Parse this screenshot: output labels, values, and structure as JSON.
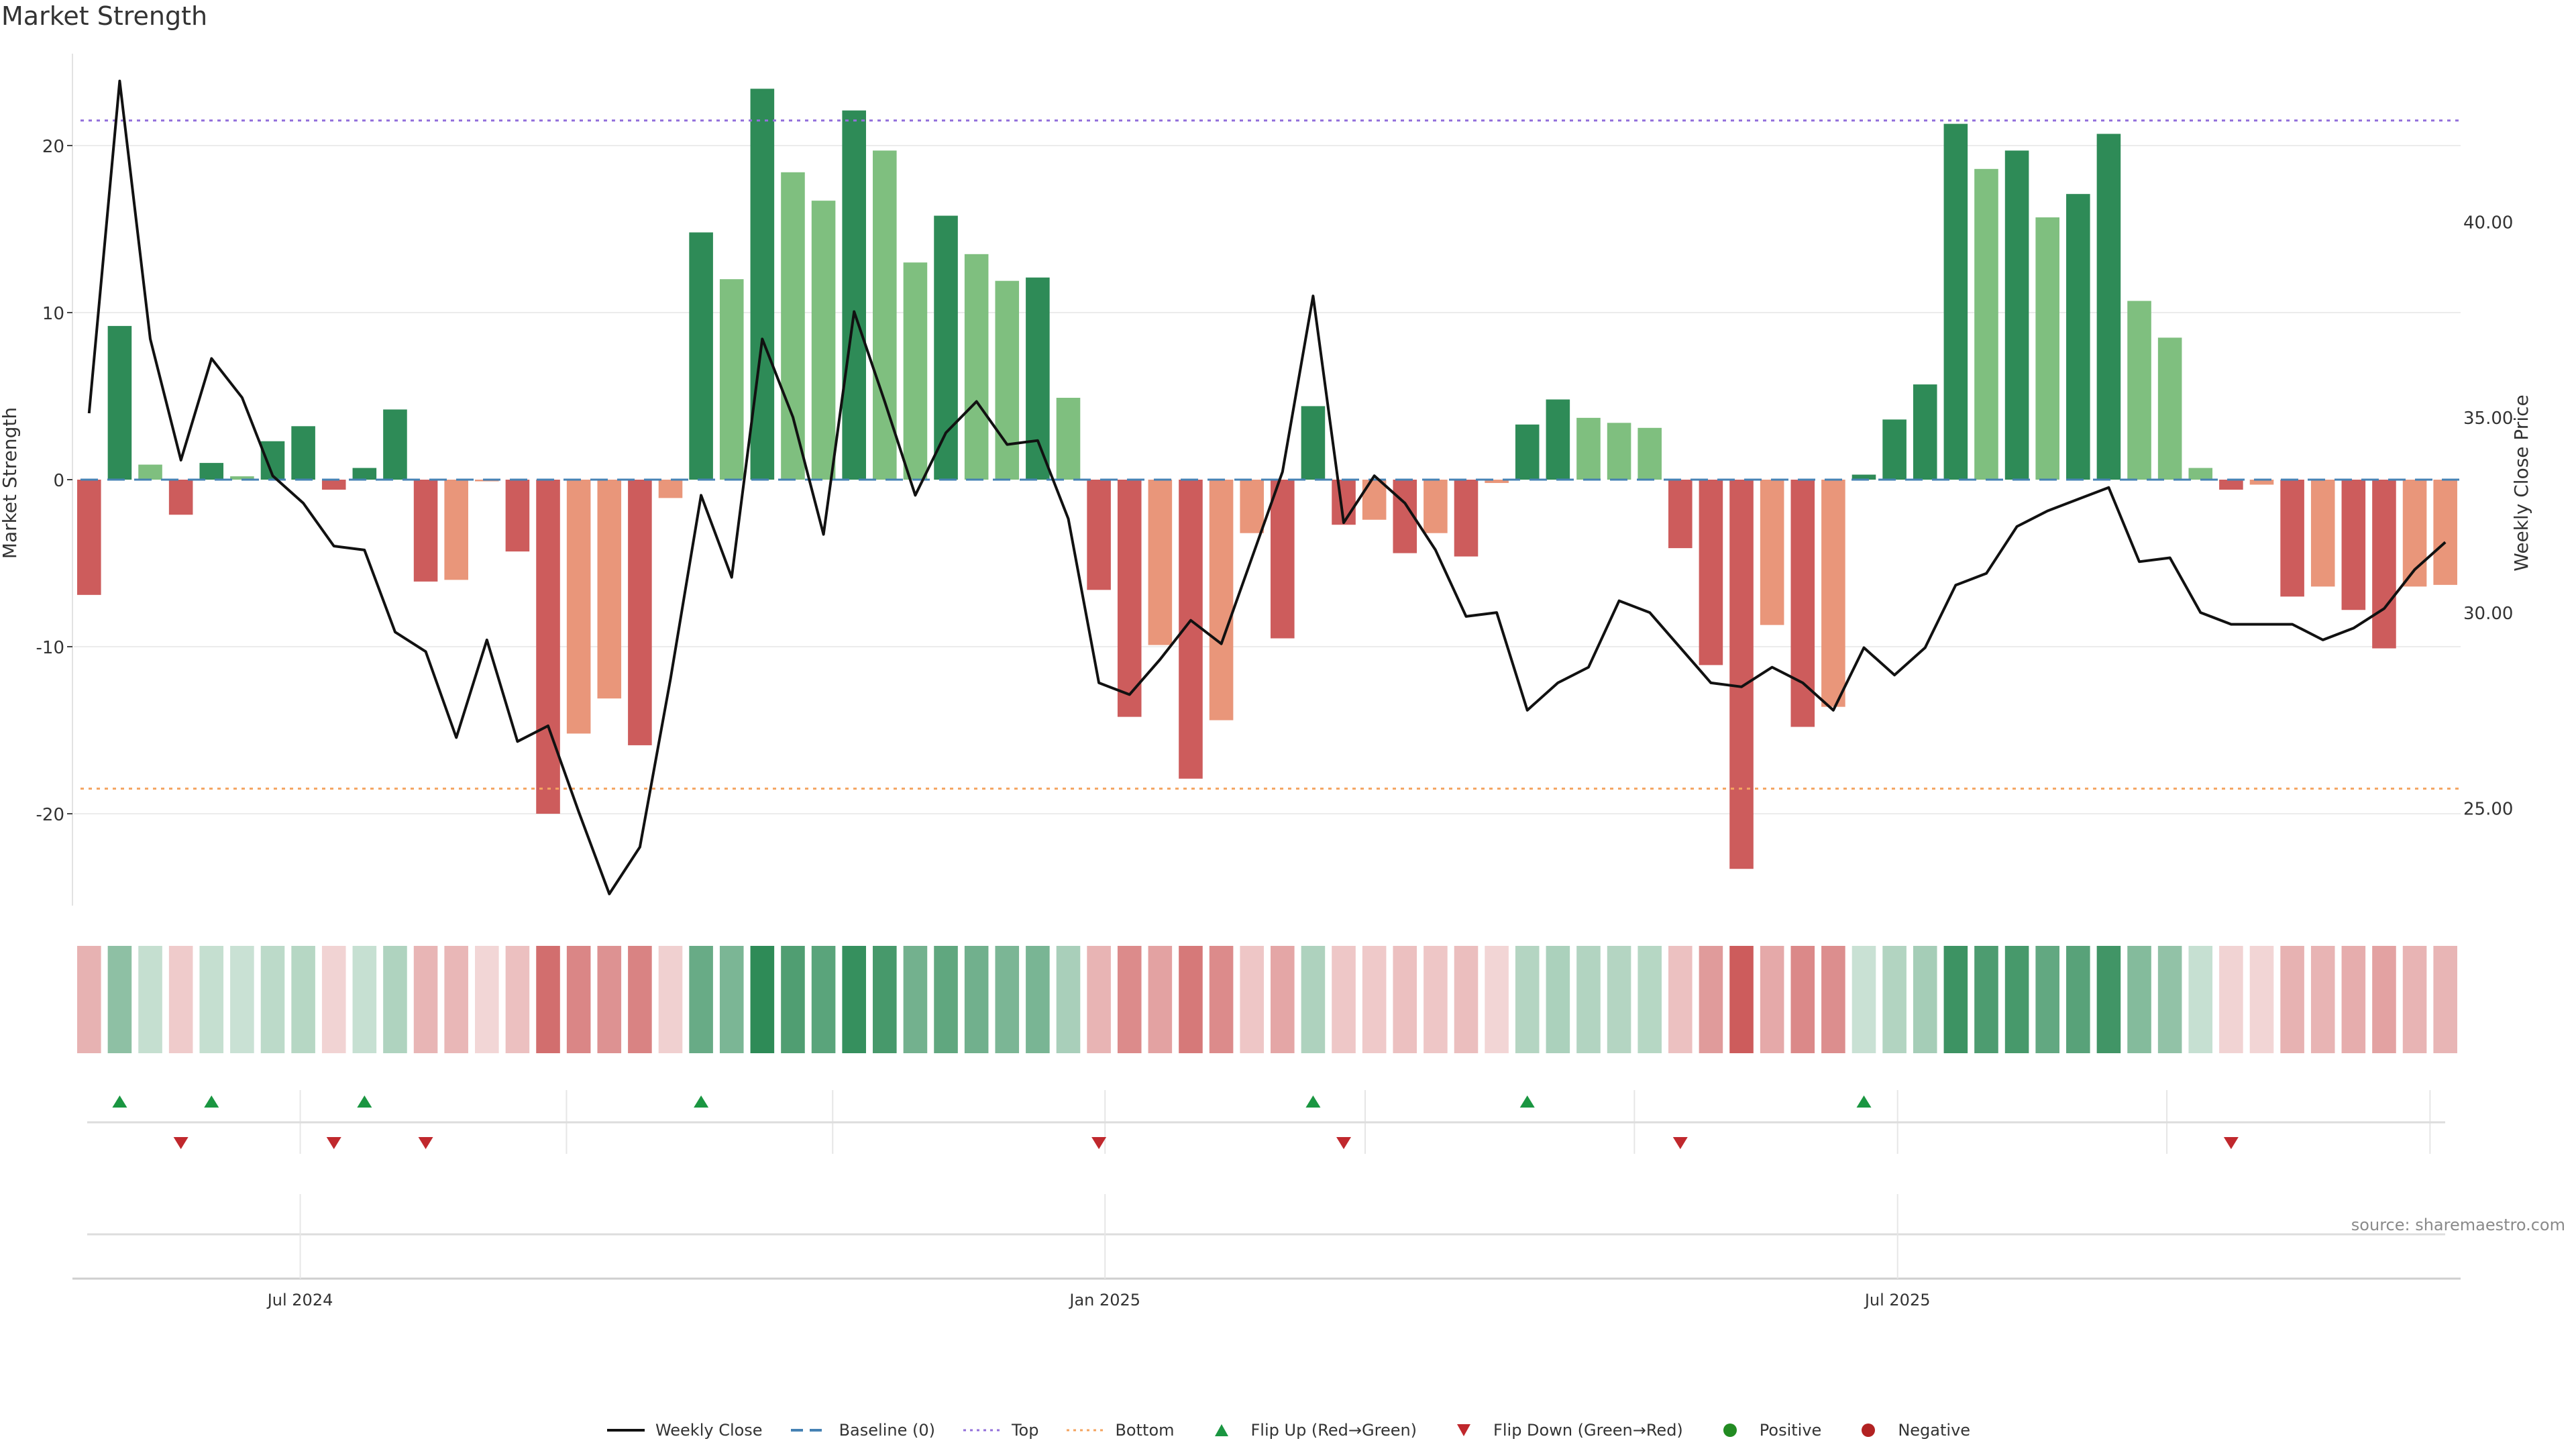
{
  "title": "Market Strength",
  "source": "source: sharemaestro.com",
  "colors": {
    "pos_strong": "#2e8b57",
    "pos_weak": "#7fbf7f",
    "neg_strong": "#cd5c5c",
    "neg_weak": "#e9967a",
    "close_line": "#111111",
    "baseline": "#4682b4",
    "top": "#9370db",
    "bottom": "#f4a460",
    "flip_up": "#1a9641",
    "flip_down": "#c0282d",
    "positive_dot": "#228b22",
    "negative_dot": "#b22222"
  },
  "legend": [
    {
      "label": "Weekly Close",
      "kind": "line",
      "color": "#111111"
    },
    {
      "label": "Baseline (0)",
      "kind": "dash",
      "color": "#4682b4"
    },
    {
      "label": "Top",
      "kind": "dot",
      "color": "#9370db"
    },
    {
      "label": "Bottom",
      "kind": "dot",
      "color": "#f4a460"
    },
    {
      "label": "Flip Up (Red→Green)",
      "kind": "tri-up",
      "color": "#1a9641"
    },
    {
      "label": "Flip Down (Green→Red)",
      "kind": "tri-down",
      "color": "#c0282d"
    },
    {
      "label": "Positive",
      "kind": "circle",
      "color": "#228b22"
    },
    {
      "label": "Negative",
      "kind": "circle",
      "color": "#b22222"
    }
  ],
  "chart_data": {
    "type": "bar",
    "title": "Market Strength",
    "ylabel": "Market Strength",
    "y2label": "Weekly Close Price",
    "ylim": [
      -25.5,
      25.5
    ],
    "y2lim": [
      22.5,
      44.3
    ],
    "yticks": [
      -20,
      -10,
      0,
      10,
      20
    ],
    "y2ticks": [
      25.0,
      30.0,
      35.0,
      40.0
    ],
    "y2ticklabels": [
      "25.00",
      "30.00",
      "35.00",
      "40.00"
    ],
    "top_threshold": 21.5,
    "bottom_threshold": -18.5,
    "baseline": 0,
    "x_tick_labels": [
      {
        "label": "Jul 2024",
        "week": 7.4
      },
      {
        "label": "Jan 2025",
        "week": 33.7
      },
      {
        "label": "Jul 2025",
        "week": 59.6
      }
    ],
    "strength": [
      -6.9,
      9.2,
      0.9,
      -2.1,
      1.0,
      0.2,
      2.3,
      3.2,
      -0.6,
      0.7,
      4.2,
      -6.1,
      -6.0,
      -0.1,
      -4.3,
      -20.0,
      -15.2,
      -13.1,
      -15.9,
      -1.1,
      14.8,
      12.0,
      23.4,
      18.4,
      16.7,
      22.1,
      19.7,
      13.0,
      15.8,
      13.5,
      11.9,
      12.1,
      4.9,
      -6.6,
      -14.2,
      -9.9,
      -17.9,
      -14.4,
      -3.2,
      -9.5,
      4.4,
      -2.7,
      -2.4,
      -4.4,
      -3.2,
      -4.6,
      -0.2,
      3.3,
      4.8,
      3.7,
      3.4,
      3.1,
      -4.1,
      -11.1,
      -23.3,
      -8.7,
      -14.8,
      -13.6,
      0.3,
      3.6,
      5.7,
      21.3,
      18.6,
      19.7,
      15.7,
      17.1,
      20.7,
      10.7,
      8.5,
      0.7,
      -0.6,
      -0.3,
      -7.0,
      -6.4,
      -7.8,
      -10.1,
      -6.4,
      -6.3
    ],
    "weekly_close": [
      35.1,
      43.6,
      37.0,
      33.9,
      36.5,
      35.5,
      33.5,
      32.8,
      31.7,
      31.6,
      29.5,
      29.0,
      26.8,
      29.3,
      26.7,
      27.1,
      24.9,
      22.8,
      24.0,
      28.3,
      33.0,
      30.9,
      37.0,
      35.0,
      32.0,
      37.7,
      35.4,
      33.0,
      34.6,
      35.4,
      34.3,
      34.4,
      32.4,
      28.2,
      27.9,
      28.8,
      29.8,
      29.2,
      31.4,
      33.6,
      38.1,
      32.3,
      33.5,
      32.8,
      31.6,
      29.9,
      30.0,
      27.5,
      28.2,
      28.6,
      30.3,
      30.0,
      29.1,
      28.2,
      28.1,
      28.6,
      28.2,
      27.5,
      29.1,
      28.4,
      29.1,
      30.7,
      31.0,
      32.2,
      32.6,
      32.9,
      33.2,
      31.3,
      31.4,
      30.0,
      29.7,
      29.7,
      29.7,
      29.3,
      29.6,
      30.1,
      31.1,
      31.8
    ],
    "flip_up_weeks": [
      1,
      4,
      9,
      20,
      40,
      47,
      58
    ],
    "flip_down_weeks": [
      3,
      8,
      11,
      33,
      41,
      52,
      70
    ]
  }
}
